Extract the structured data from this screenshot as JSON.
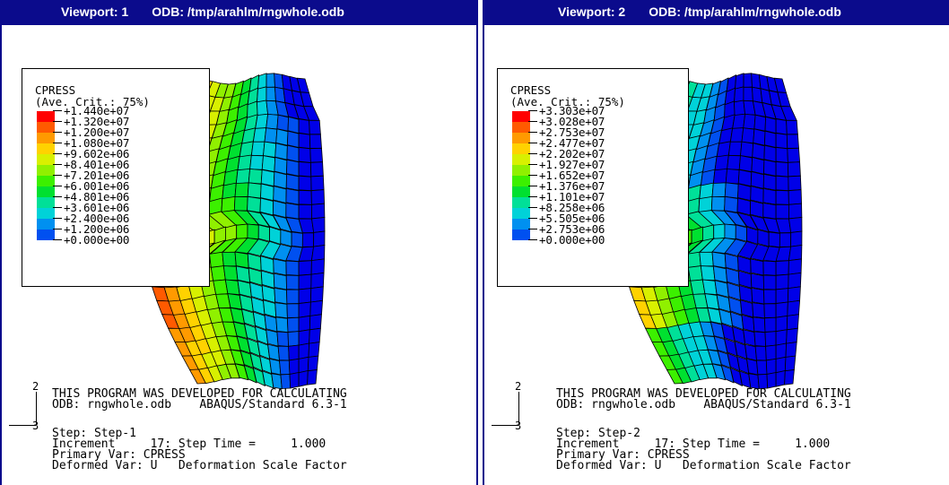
{
  "viewports": [
    {
      "title_label": "Viewport: 1",
      "title_odb": "ODB: /tmp/arahlm/rngwhole.odb",
      "legend": {
        "title": "CPRESS",
        "subtitle": "(Ave. Crit.: 75%)",
        "values": [
          "+1.440e+07",
          "+1.320e+07",
          "+1.200e+07",
          "+1.080e+07",
          "+9.602e+06",
          "+8.401e+06",
          "+7.201e+06",
          "+6.001e+06",
          "+4.801e+06",
          "+3.601e+06",
          "+2.400e+06",
          "+1.200e+06",
          "+0.000e+00"
        ]
      },
      "info": {
        "line1": "THIS PROGRAM WAS DEVELOPED FOR CALCULATING",
        "line2": "ODB: rngwhole.odb    ABAQUS/Standard 6.3-1",
        "line3": "Step: Step-1",
        "line4": "Increment     17: Step Time =     1.000",
        "line5": "Primary Var: CPRESS",
        "line6": "Deformed Var: U   Deformation Scale Factor"
      },
      "triad": {
        "up": "2",
        "out": "3"
      }
    },
    {
      "title_label": "Viewport: 2",
      "title_odb": "ODB: /tmp/arahlm/rngwhole.odb",
      "legend": {
        "title": "CPRESS",
        "subtitle": "(Ave. Crit.: 75%)",
        "values": [
          "+3.303e+07",
          "+3.028e+07",
          "+2.753e+07",
          "+2.477e+07",
          "+2.202e+07",
          "+1.927e+07",
          "+1.652e+07",
          "+1.376e+07",
          "+1.101e+07",
          "+8.258e+06",
          "+5.505e+06",
          "+2.753e+06",
          "+0.000e+00"
        ]
      },
      "info": {
        "line1": "THIS PROGRAM WAS DEVELOPED FOR CALCULATING",
        "line2": "ODB: rngwhole.odb    ABAQUS/Standard 6.3-1",
        "line3": "Step: Step-2",
        "line4": "Increment     17: Step Time =     1.000",
        "line5": "Primary Var: CPRESS",
        "line6": "Deformed Var: U   Deformation Scale Factor"
      },
      "triad": {
        "up": "2",
        "out": "3"
      }
    }
  ],
  "colors": {
    "title_bar": "#0b0b8c",
    "contour_scale": [
      "#ff0000",
      "#ff5a00",
      "#ff9a00",
      "#ffd200",
      "#d8f000",
      "#90f000",
      "#3cf000",
      "#00e030",
      "#00e098",
      "#00d2d8",
      "#0090f0",
      "#0050f0",
      "#0000e8"
    ]
  }
}
